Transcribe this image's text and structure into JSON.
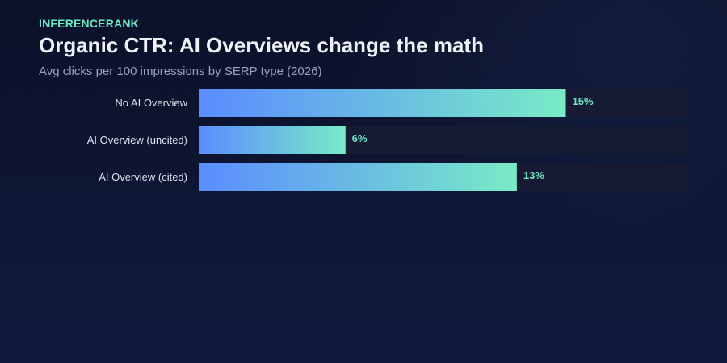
{
  "header": {
    "brand": "INFERENCERANK",
    "title": "Organic CTR: AI Overviews change the math",
    "subtitle": "Avg clicks per 100 impressions by SERP type (2026)"
  },
  "colors": {
    "bar_start": "#5b8cff",
    "bar_end": "#78ebc6",
    "track": "#161a33",
    "value_label": "#6ee7c7"
  },
  "chart_data": {
    "type": "bar",
    "orientation": "horizontal",
    "categories": [
      "No AI Overview",
      "AI Overview (uncited)",
      "AI Overview (cited)"
    ],
    "values": [
      15,
      6,
      13
    ],
    "value_labels": [
      "15%",
      "6%",
      "13%"
    ],
    "xlim": [
      0,
      20
    ],
    "grid": false,
    "legend": "none"
  }
}
